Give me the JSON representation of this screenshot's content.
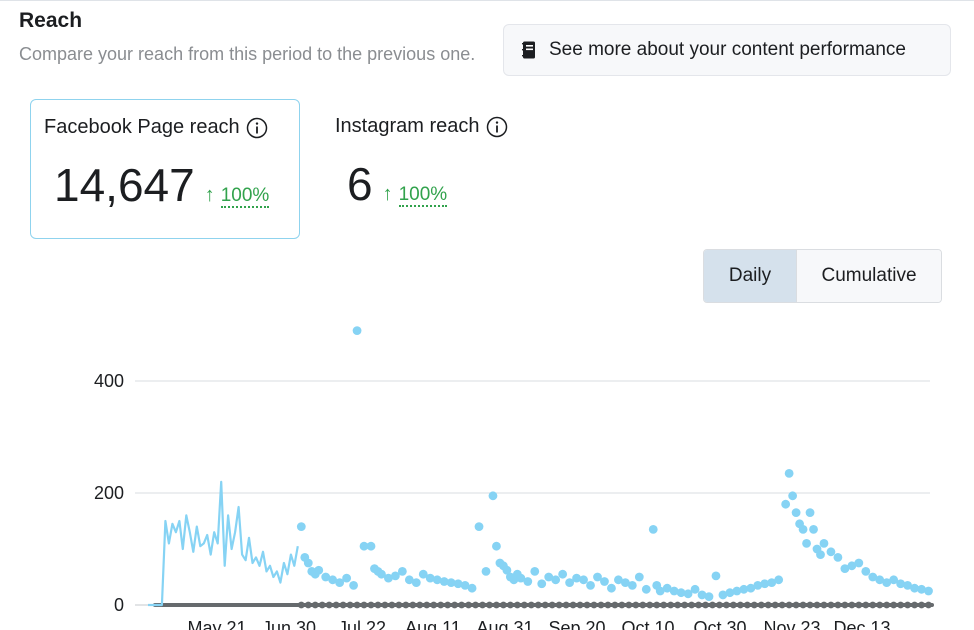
{
  "header": {
    "title": "Reach",
    "subtitle": "Compare your reach from this period to the previous one.",
    "perf_button_label": "See more about your content performance"
  },
  "cards": [
    {
      "label": "Facebook Page reach",
      "value": "14,647",
      "change_arrow": "↑",
      "change": "100%"
    },
    {
      "label": "Instagram reach",
      "value": "6",
      "change_arrow": "↑",
      "change": "100%"
    }
  ],
  "toggle": {
    "daily": "Daily",
    "cumulative": "Cumulative",
    "selected": "Daily"
  },
  "colors": {
    "accent_blue": "#8fd3ee",
    "series_facebook": "#86d3f4",
    "series_instagram": "#666a6d",
    "grid": "#dadde1",
    "up_green": "#31a24c"
  },
  "chart_data": {
    "type": "line",
    "y_ticks": [
      0,
      200,
      400
    ],
    "ylim": [
      0,
      500
    ],
    "x_tick_labels": [
      "May 21",
      "Jun 30",
      "Jul 22",
      "Aug 11",
      "Aug 31",
      "Sep 20",
      "Oct 10",
      "Oct 30",
      "Nov 23",
      "Dec 13"
    ],
    "x_range": [
      "2023-05-18",
      "2023-12-29"
    ],
    "series": [
      {
        "style": "line",
        "x": [
          "2023-05-18",
          "2023-05-20",
          "2023-05-22",
          "2023-05-23",
          "2023-05-24",
          "2023-05-25",
          "2023-05-26",
          "2023-05-27",
          "2023-05-28",
          "2023-05-29",
          "2023-05-30",
          "2023-05-31",
          "2023-06-01",
          "2023-06-02",
          "2023-06-03",
          "2023-06-04",
          "2023-06-05",
          "2023-06-06",
          "2023-06-07",
          "2023-06-08",
          "2023-06-09",
          "2023-06-10",
          "2023-06-11",
          "2023-06-12",
          "2023-06-13",
          "2023-06-14",
          "2023-06-15",
          "2023-06-16",
          "2023-06-17",
          "2023-06-18",
          "2023-06-19",
          "2023-06-20",
          "2023-06-21",
          "2023-06-22",
          "2023-06-23",
          "2023-06-24",
          "2023-06-25",
          "2023-06-26",
          "2023-06-27",
          "2023-06-28",
          "2023-06-29",
          "2023-06-30"
        ],
        "values": [
          0,
          0,
          0,
          150,
          110,
          145,
          130,
          150,
          100,
          160,
          130,
          95,
          140,
          105,
          110,
          125,
          90,
          130,
          110,
          220,
          70,
          160,
          100,
          130,
          175,
          90,
          80,
          120,
          75,
          85,
          70,
          95,
          60,
          70,
          50,
          60,
          40,
          75,
          55,
          90,
          70,
          105
        ]
      },
      {
        "style": "scatter",
        "x": [
          "2023-07-01",
          "2023-07-02",
          "2023-07-03",
          "2023-07-04",
          "2023-07-05",
          "2023-07-06",
          "2023-07-08",
          "2023-07-10",
          "2023-07-12",
          "2023-07-14",
          "2023-07-16",
          "2023-07-17",
          "2023-07-19",
          "2023-07-21",
          "2023-07-22",
          "2023-07-23",
          "2023-07-24",
          "2023-07-26",
          "2023-07-28",
          "2023-07-30",
          "2023-08-01",
          "2023-08-03",
          "2023-08-05",
          "2023-08-07",
          "2023-08-09",
          "2023-08-11",
          "2023-08-13",
          "2023-08-15",
          "2023-08-17",
          "2023-08-19",
          "2023-08-21",
          "2023-08-23",
          "2023-08-25",
          "2023-08-26",
          "2023-08-27",
          "2023-08-28",
          "2023-08-29",
          "2023-08-30",
          "2023-08-31",
          "2023-09-01",
          "2023-09-02",
          "2023-09-04",
          "2023-09-06",
          "2023-09-08",
          "2023-09-10",
          "2023-09-12",
          "2023-09-14",
          "2023-09-16",
          "2023-09-18",
          "2023-09-20",
          "2023-09-22",
          "2023-09-24",
          "2023-09-26",
          "2023-09-28",
          "2023-09-30",
          "2023-10-02",
          "2023-10-04",
          "2023-10-06",
          "2023-10-08",
          "2023-10-10",
          "2023-10-11",
          "2023-10-12",
          "2023-10-14",
          "2023-10-16",
          "2023-10-18",
          "2023-10-20",
          "2023-10-22",
          "2023-10-24",
          "2023-10-26",
          "2023-10-28",
          "2023-10-30",
          "2023-11-01",
          "2023-11-03",
          "2023-11-05",
          "2023-11-07",
          "2023-11-09",
          "2023-11-11",
          "2023-11-13",
          "2023-11-15",
          "2023-11-17",
          "2023-11-18",
          "2023-11-19",
          "2023-11-20",
          "2023-11-21",
          "2023-11-22",
          "2023-11-23",
          "2023-11-24",
          "2023-11-25",
          "2023-11-26",
          "2023-11-27",
          "2023-11-28",
          "2023-11-30",
          "2023-12-02",
          "2023-12-04",
          "2023-12-06",
          "2023-12-08",
          "2023-12-10",
          "2023-12-12",
          "2023-12-14",
          "2023-12-16",
          "2023-12-18",
          "2023-12-20",
          "2023-12-22",
          "2023-12-24",
          "2023-12-26",
          "2023-12-28"
        ],
        "values": [
          140,
          85,
          75,
          60,
          55,
          62,
          50,
          45,
          40,
          48,
          35,
          490,
          105,
          105,
          65,
          60,
          55,
          48,
          52,
          60,
          45,
          40,
          55,
          48,
          45,
          42,
          40,
          38,
          35,
          30,
          140,
          60,
          195,
          105,
          75,
          70,
          62,
          50,
          45,
          55,
          48,
          42,
          60,
          38,
          50,
          45,
          55,
          40,
          48,
          45,
          35,
          50,
          42,
          30,
          45,
          40,
          35,
          50,
          28,
          135,
          35,
          25,
          30,
          25,
          22,
          20,
          28,
          18,
          15,
          52,
          18,
          22,
          25,
          28,
          30,
          35,
          38,
          40,
          45,
          180,
          235,
          195,
          165,
          145,
          135,
          110,
          165,
          135,
          100,
          90,
          110,
          95,
          85,
          65,
          70,
          75,
          60,
          50,
          45,
          40,
          45,
          38,
          35,
          30,
          28,
          25
        ]
      },
      {
        "name": "Instagram",
        "style": "line",
        "x": [
          "2023-05-20",
          "2023-12-29"
        ],
        "values": [
          0,
          0
        ]
      }
    ]
  }
}
